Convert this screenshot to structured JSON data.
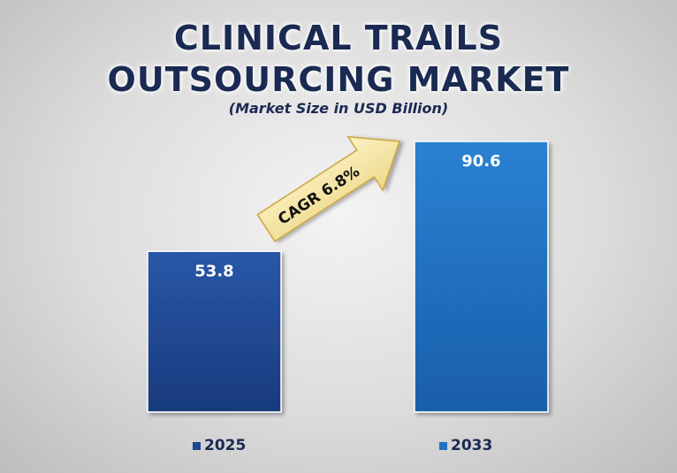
{
  "chart_data": {
    "type": "bar",
    "title_lines": [
      "CLINICAL TRAILS",
      "OUTSOURCING MARKET"
    ],
    "subtitle": "(Market Size in USD Billion)",
    "categories": [
      "2025",
      "2033"
    ],
    "values": [
      53.8,
      90.6
    ],
    "data_labels": [
      "53.8",
      "90.6"
    ],
    "annotation": "CAGR 6.8%",
    "ylim": [
      0,
      90.6
    ],
    "legend_position": "bottom",
    "colors": {
      "2025": "#1f4590",
      "2033": "#1e72c4",
      "title": "#1a2a52",
      "arrow": "#f5e6a0"
    }
  }
}
